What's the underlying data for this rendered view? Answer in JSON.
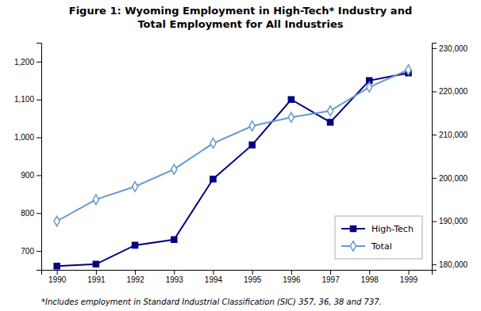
{
  "chart_data": {
    "type": "line",
    "title": "Figure 1: Wyoming Employment in High-Tech* Industry and\nTotal Employment for All Industries",
    "annotations": [
      "*Includes employment in Standard Industrial Classification (SIC) 357, 36, 38 and 737."
    ],
    "x": [
      1990,
      1991,
      1992,
      1993,
      1994,
      1995,
      1996,
      1997,
      1998,
      1999
    ],
    "xlim": [
      1989.6,
      1999.6
    ],
    "xticks": [
      1990,
      1991,
      1992,
      1993,
      1994,
      1995,
      1996,
      1997,
      1998,
      1999
    ],
    "ylim": [
      650,
      1250
    ],
    "yticks": [
      700,
      800,
      900,
      {
        "value": 1000,
        "label": "1,000"
      },
      {
        "value": 1100,
        "label": "1,100"
      },
      {
        "value": 1200,
        "label": "1,200"
      }
    ],
    "y2lim": [
      178750,
      231250
    ],
    "y2ticks": [
      {
        "value": 180000,
        "label": "180,000"
      },
      {
        "value": 190000,
        "label": "190,000"
      },
      {
        "value": 200000,
        "label": "200,000"
      },
      {
        "value": 210000,
        "label": "210,000"
      },
      {
        "value": 220000,
        "label": "220,000"
      },
      {
        "value": 230000,
        "label": "230,000"
      }
    ],
    "grid": false,
    "legend": "lower right",
    "series": [
      {
        "name": "High-Tech",
        "color": "#000080",
        "marker": "square",
        "values": [
          660,
          665,
          715,
          730,
          890,
          980,
          1100,
          1040,
          1150,
          1170
        ]
      },
      {
        "name": "Total",
        "color": "#6699CC",
        "marker": "diamond",
        "axis": "y2",
        "values": [
          190000,
          195000,
          198000,
          202000,
          208000,
          212000,
          214000,
          215500,
          221000,
          225000
        ]
      }
    ]
  }
}
